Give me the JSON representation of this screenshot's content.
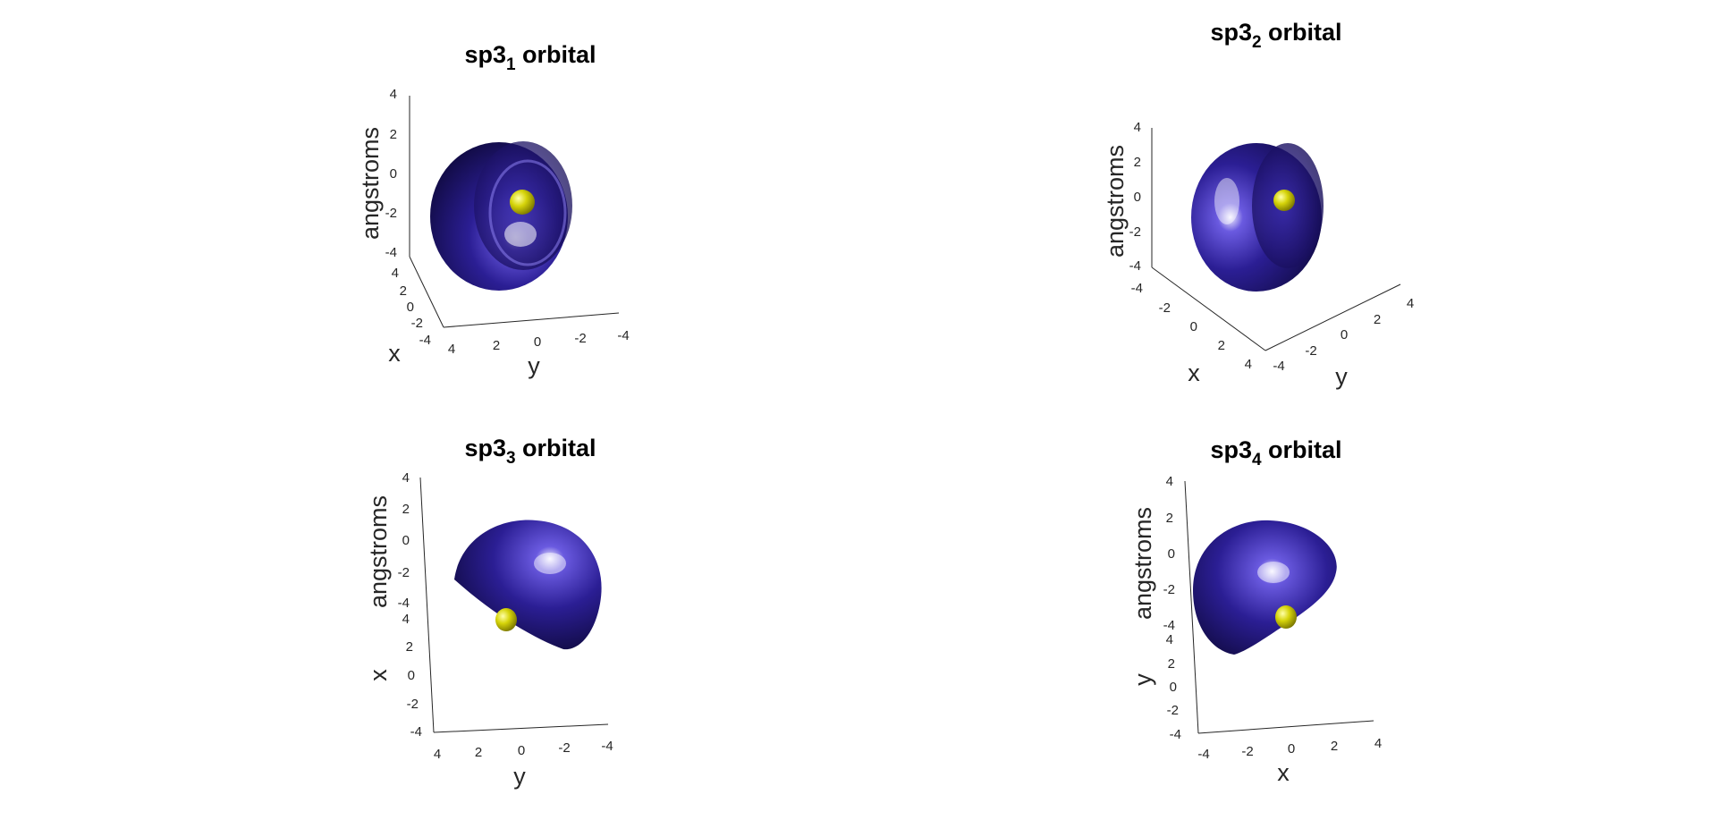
{
  "panels": [
    {
      "id": "sp3_1",
      "title_main": "sp3",
      "title_sub": "1",
      "title_rest": " orbital",
      "zlabel": "angstroms",
      "xlabel": "x",
      "ylabel": "y",
      "ticks": {
        "z": [
          "4",
          "2",
          "0",
          "-2",
          "-4"
        ],
        "x": [
          "4",
          "2",
          "0",
          "-2",
          "-4"
        ],
        "y": [
          "4",
          "2",
          "0",
          "-2",
          "-4"
        ]
      }
    },
    {
      "id": "sp3_2",
      "title_main": "sp3",
      "title_sub": "2",
      "title_rest": " orbital",
      "zlabel": "angstroms",
      "xlabel": "x",
      "ylabel": "y",
      "ticks": {
        "z": [
          "4",
          "2",
          "0",
          "-2",
          "-4"
        ],
        "x": [
          "-4",
          "-2",
          "0",
          "2",
          "4"
        ],
        "y": [
          "-4",
          "-2",
          "0",
          "2",
          "4"
        ]
      }
    },
    {
      "id": "sp3_3",
      "title_main": "sp3",
      "title_sub": "3",
      "title_rest": " orbital",
      "zlabel": "angstroms",
      "xlabel": "x",
      "ylabel": "y",
      "ticks": {
        "z": [
          "4",
          "2",
          "0",
          "-2",
          "-4"
        ],
        "x": [
          "4",
          "2",
          "0",
          "-2",
          "-4"
        ],
        "y": [
          "4",
          "2",
          "0",
          "-2",
          "-4"
        ]
      }
    },
    {
      "id": "sp3_4",
      "title_main": "sp3",
      "title_sub": "4",
      "title_rest": " orbital",
      "zlabel": "angstroms",
      "xlabel": "x",
      "ylabel": "y",
      "ticks": {
        "z": [
          "4",
          "2",
          "0",
          "-2",
          "-4"
        ],
        "x": [
          "-4",
          "-2",
          "0",
          "2",
          "4"
        ],
        "y": [
          "4",
          "2",
          "0",
          "-2",
          "-4"
        ]
      }
    }
  ],
  "colors": {
    "large_lobe": "#2a1d8c",
    "large_lobe_highlight": "#ece8ff",
    "small_lobe": "#c8c800",
    "axis": "#262626"
  }
}
